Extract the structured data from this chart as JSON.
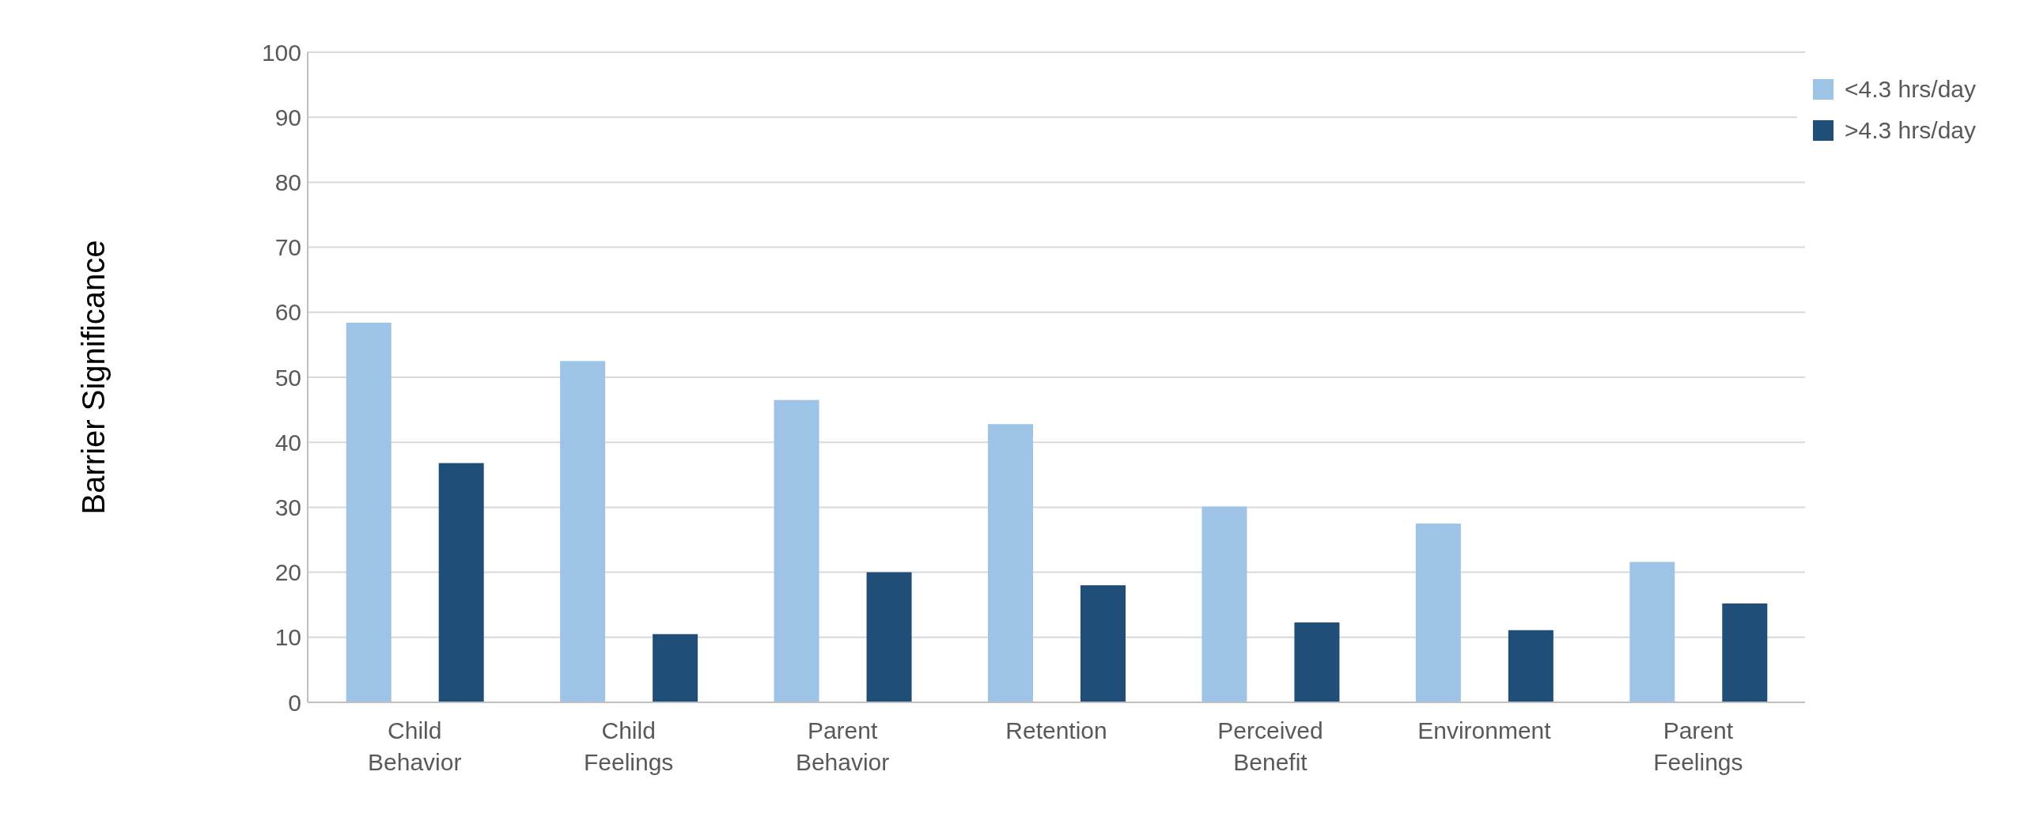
{
  "chart_data": {
    "type": "bar",
    "ylabel": "Barrier Significance",
    "categories": [
      "Child Behavior",
      "Child Feelings",
      "Parent Behavior",
      "Retention",
      "Perceived Benefit",
      "Environment",
      "Parent Feelings"
    ],
    "series": [
      {
        "name": "<4.3 hrs/day",
        "color": "#9dc3e6",
        "values": [
          58.4,
          52.5,
          46.5,
          42.8,
          30.1,
          27.5,
          21.6
        ]
      },
      {
        "name": ">4.3 hrs/day",
        "color": "#1f4e79",
        "values": [
          36.8,
          10.5,
          20.0,
          18.0,
          12.3,
          11.1,
          15.2
        ]
      }
    ],
    "ylim": [
      0,
      100
    ],
    "yticks": [
      0,
      10,
      20,
      30,
      40,
      50,
      60,
      70,
      80,
      90,
      100
    ],
    "grid": "y",
    "legend": "top right"
  }
}
